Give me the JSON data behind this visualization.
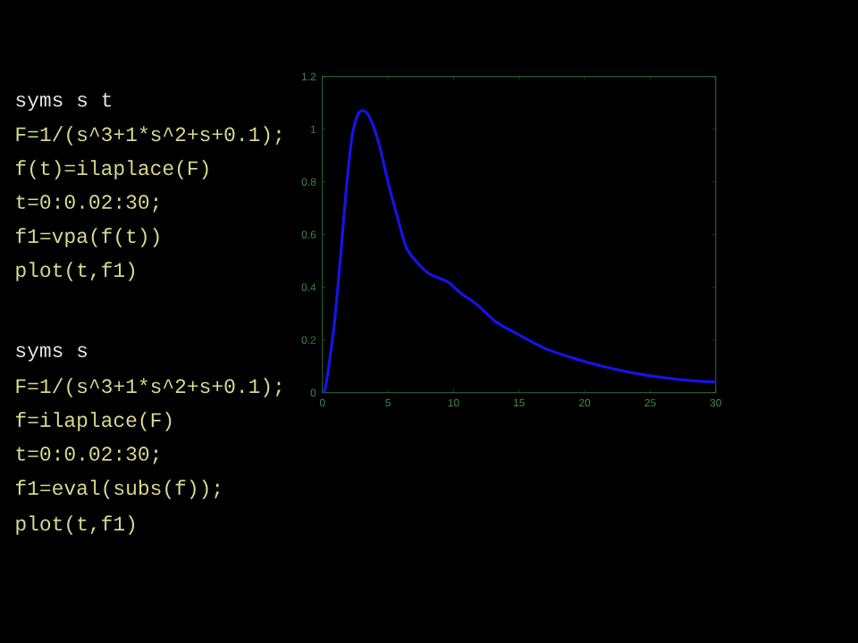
{
  "chart_data": {
    "type": "line",
    "annotations": [
      "syms s t",
      "F=1/(s^3+1*s^2+s+0.1);",
      "f(t)=ilaplace(F)",
      "t=0:0.02:30;",
      "f1=vpa(f(t))",
      "plot(t,f1)",
      "syms s",
      "F=1/(s^3+1*s^2+s+0.1);",
      "f=ilaplace(F)",
      "t=0:0.02:30;",
      "f1=eval(subs(f));",
      "plot(t,f1)"
    ],
    "series": [
      {
        "color": "#1414e6",
        "x": [
          0,
          0.23,
          0.9,
          1.37,
          1.83,
          2.28,
          2.74,
          3.2,
          3.65,
          4.34,
          5.0,
          5.7,
          6.4,
          7.3,
          8.2,
          9.6,
          10.5,
          11.9,
          13.2,
          14.6,
          16.9,
          19.2,
          21.4,
          23.7,
          26.0,
          28.3,
          30
        ],
        "values": [
          0,
          0.02,
          0.26,
          0.51,
          0.78,
          0.98,
          1.06,
          1.07,
          1.04,
          0.94,
          0.8,
          0.67,
          0.55,
          0.49,
          0.45,
          0.42,
          0.38,
          0.33,
          0.27,
          0.23,
          0.17,
          0.13,
          0.1,
          0.075,
          0.057,
          0.045,
          0.04
        ]
      }
    ],
    "xlim": [
      0,
      30
    ],
    "ylim": [
      0,
      1.2
    ],
    "xticks": [
      0,
      5,
      10,
      15,
      20,
      25,
      30
    ],
    "yticks": [
      0,
      0.2,
      0.4,
      0.6,
      0.8,
      1,
      1.2
    ]
  }
}
